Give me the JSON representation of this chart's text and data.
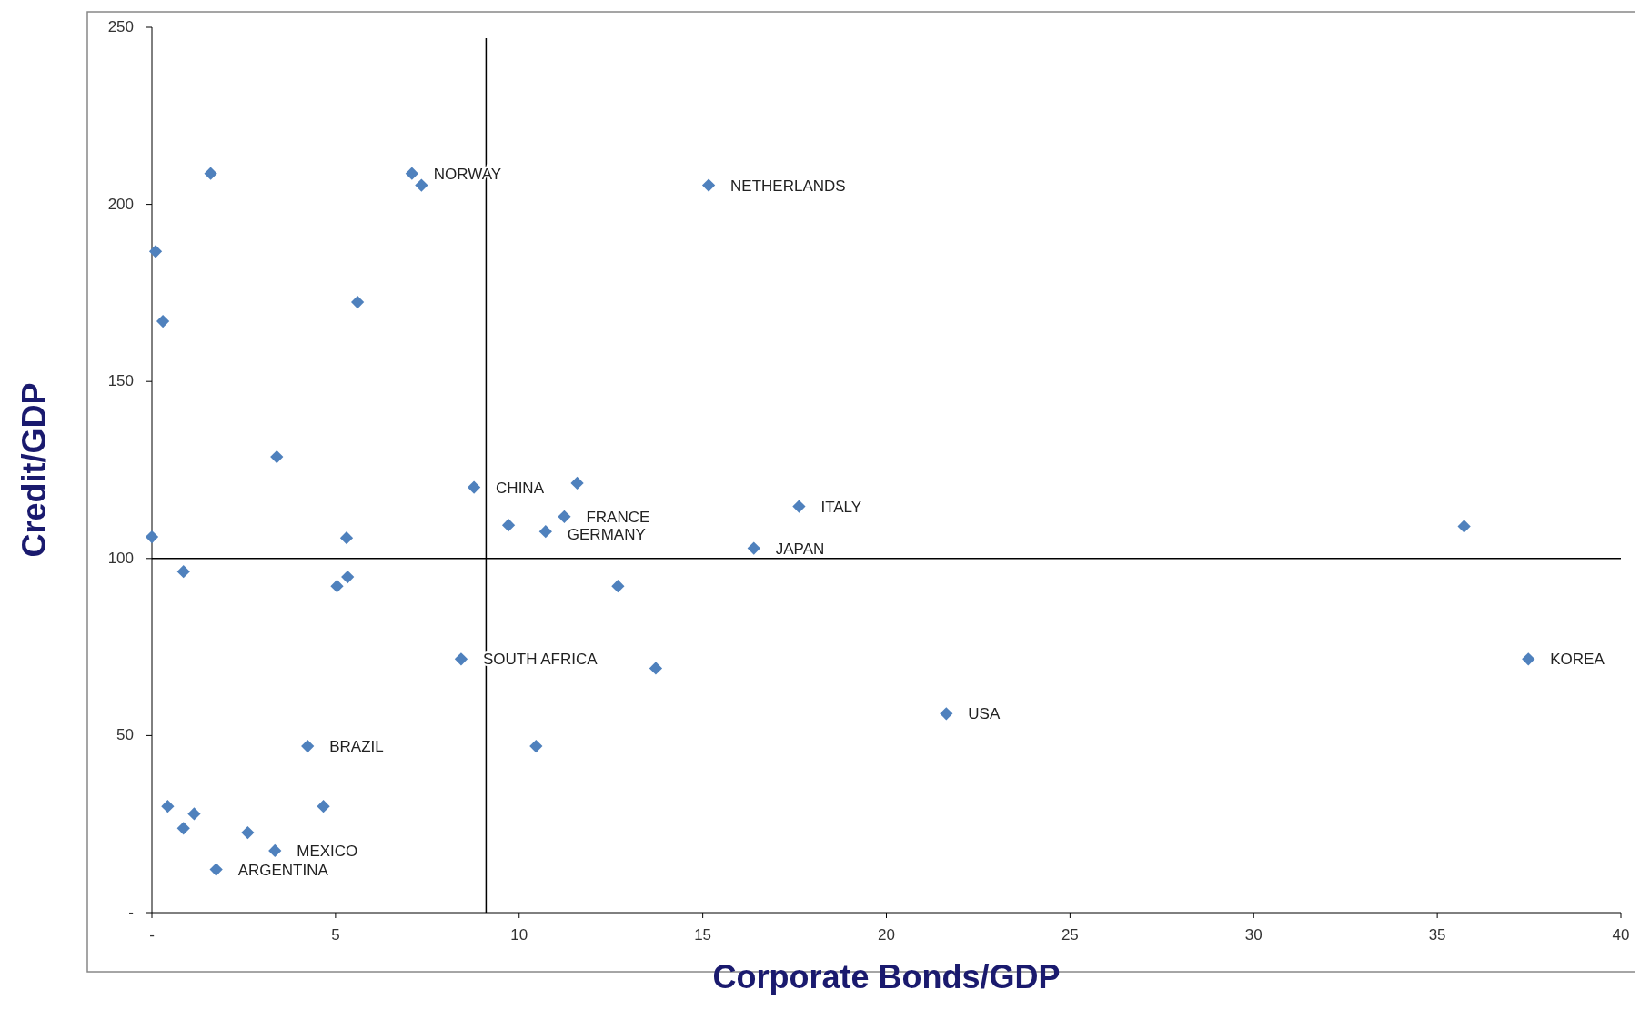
{
  "chart_data": {
    "type": "scatter",
    "xlabel": "Corporate Bonds/GDP",
    "ylabel": "Credit/GDP",
    "marker": "diamond",
    "grid": false,
    "xlim": [
      0,
      40
    ],
    "ylim": [
      0,
      250
    ],
    "xticks": [
      {
        "value": 0,
        "label": "-"
      },
      5,
      10,
      15,
      20,
      25,
      30,
      35,
      40
    ],
    "yticks": [
      {
        "value": 0,
        "label": "-"
      },
      50,
      100,
      150,
      200,
      250
    ],
    "series": [
      {
        "color": "#4f81bd",
        "x": [
          1.6,
          0.1,
          0.3,
          7.08,
          7.34,
          15.16,
          5.6,
          3.4,
          8.77,
          11.58,
          17.62,
          35.73,
          9.71,
          11.23,
          10.72,
          16.39,
          0.0,
          5.3,
          0.86,
          5.33,
          5.04,
          12.69,
          8.42,
          13.72,
          37.48,
          21.63,
          4.24,
          10.46,
          0.43,
          4.67,
          1.15,
          0.86,
          2.61,
          3.35,
          1.75
        ],
        "values": [
          208.7,
          186.7,
          167,
          208.7,
          205.4,
          205.4,
          172.4,
          128.7,
          120.1,
          121.3,
          114.7,
          109.1,
          109.4,
          111.8,
          107.6,
          102.9,
          106.1,
          105.8,
          96.3,
          94.8,
          92.2,
          92.2,
          71.6,
          69.0,
          71.6,
          56.2,
          47.0,
          47.0,
          30.0,
          30.0,
          27.9,
          23.8,
          22.6,
          17.5,
          12.2
        ]
      }
    ],
    "ref_lines": [
      {
        "axis": "x",
        "value": 9.1,
        "color": "#000000"
      },
      {
        "axis": "y",
        "value": 100,
        "color": "#000000"
      }
    ],
    "annotations": [
      {
        "text": "NORWAY",
        "x": 7.08,
        "y": 208.7
      },
      {
        "text": "NETHERLANDS",
        "x": 15.16,
        "y": 205.4
      },
      {
        "text": "CHINA",
        "x": 8.77,
        "y": 120.1
      },
      {
        "text": "ITALY",
        "x": 17.62,
        "y": 114.7
      },
      {
        "text": "FRANCE",
        "x": 11.23,
        "y": 111.8
      },
      {
        "text": "GERMANY",
        "x": 10.72,
        "y": 107.6
      },
      {
        "text": "JAPAN",
        "x": 16.39,
        "y": 102.9
      },
      {
        "text": "SOUTH AFRICA",
        "x": 8.42,
        "y": 71.6
      },
      {
        "text": "KOREA",
        "x": 37.48,
        "y": 71.6
      },
      {
        "text": "USA",
        "x": 21.63,
        "y": 56.2
      },
      {
        "text": "BRAZIL",
        "x": 4.24,
        "y": 47.0
      },
      {
        "text": "MEXICO",
        "x": 3.35,
        "y": 17.5
      },
      {
        "text": "ARGENTINA",
        "x": 1.75,
        "y": 12.2
      }
    ]
  }
}
